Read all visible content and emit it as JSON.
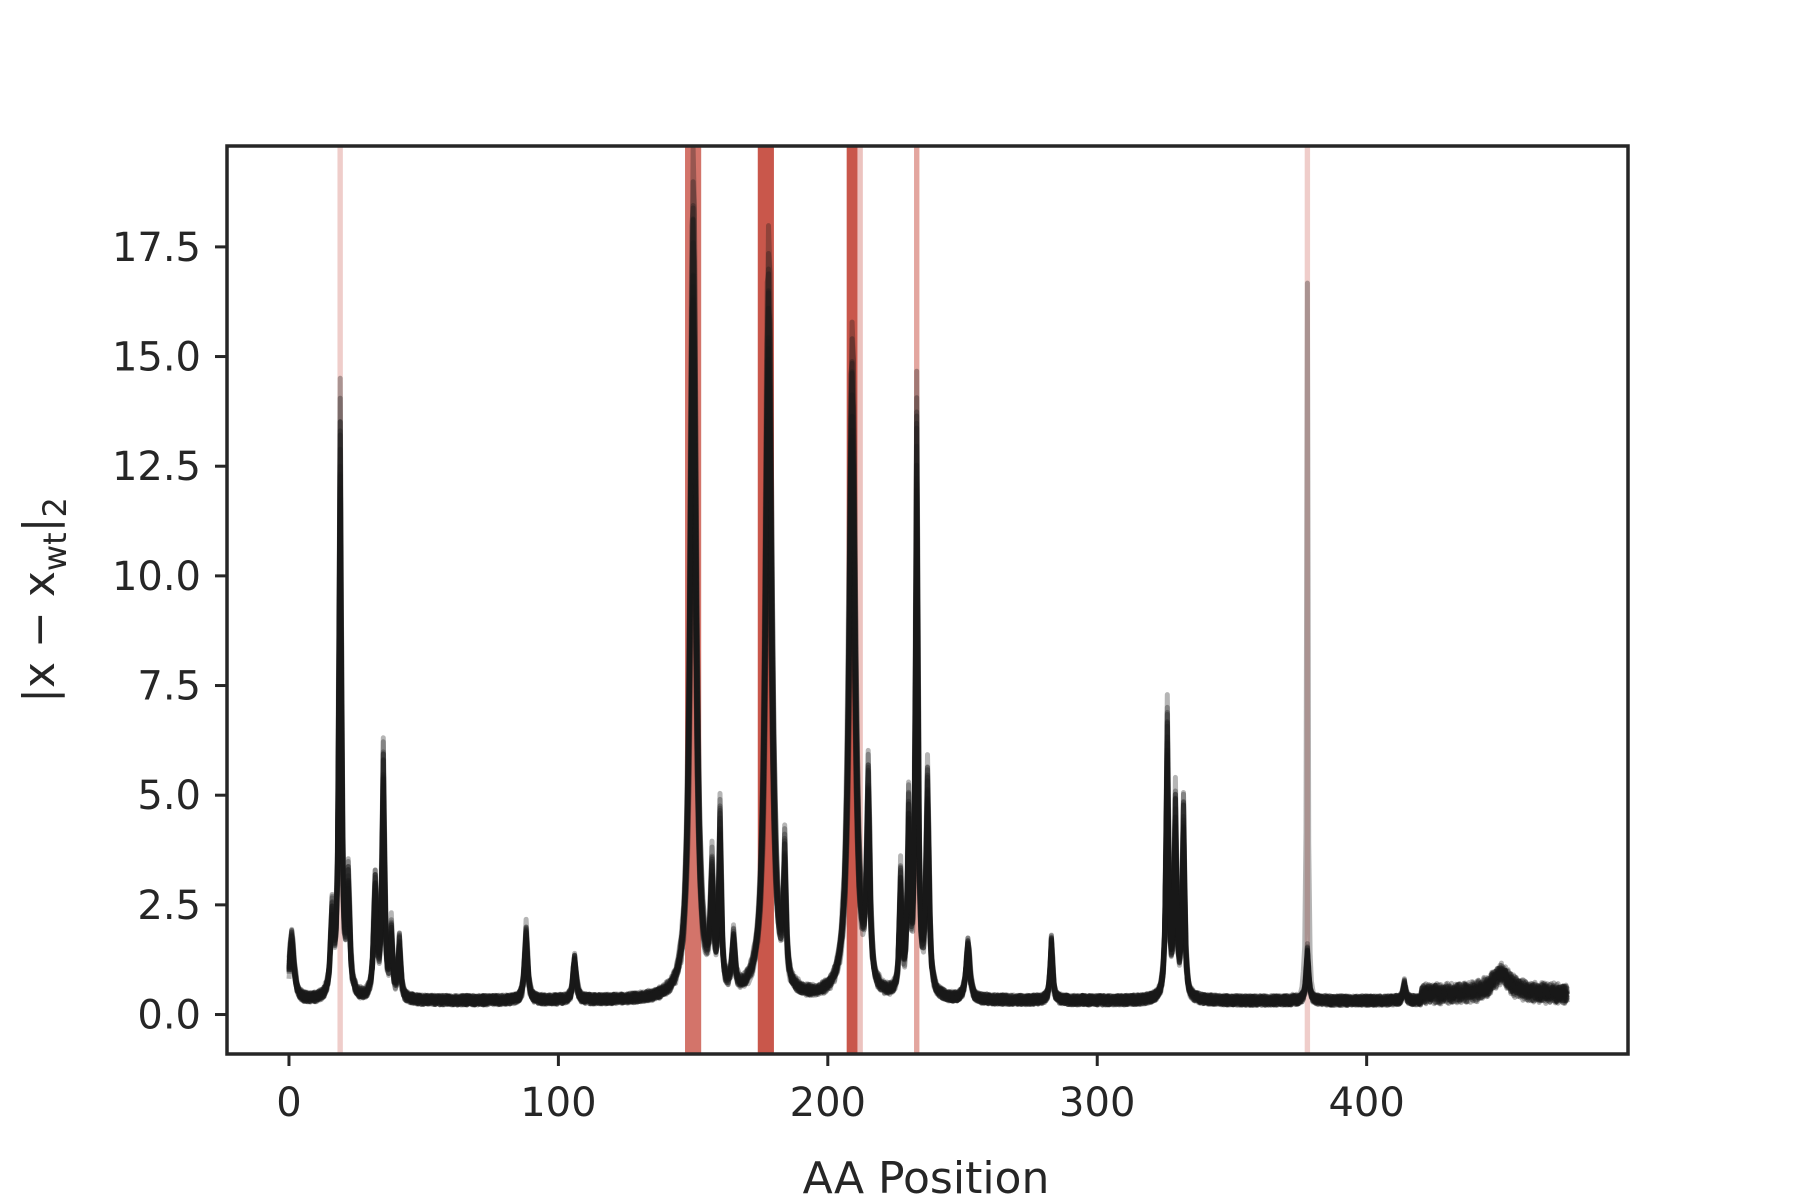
{
  "chart_data": {
    "type": "line",
    "title": "",
    "xlabel": "AA Position",
    "ylabel_parts": [
      "|x − x",
      "wt",
      "|",
      "2"
    ],
    "xlim": [
      -23,
      497
    ],
    "ylim": [
      -0.9,
      19.8
    ],
    "x_ticks": [
      0,
      100,
      200,
      300,
      400
    ],
    "x_tick_labels": [
      "0",
      "100",
      "200",
      "300",
      "400"
    ],
    "y_ticks": [
      0.0,
      2.5,
      5.0,
      7.5,
      10.0,
      12.5,
      15.0,
      17.5
    ],
    "y_tick_labels": [
      "0.0",
      "2.5",
      "5.0",
      "7.5",
      "10.0",
      "12.5",
      "15.0",
      "17.5"
    ],
    "grid": false,
    "legend": "none",
    "line_color": "#1a1a1a",
    "band_color": "#c0392b",
    "highlight_positions": [
      {
        "x": 19,
        "width": 2,
        "opacity": 0.25
      },
      {
        "x": 150,
        "width": 6,
        "opacity": 0.7
      },
      {
        "x": 177,
        "width": 6,
        "opacity": 0.85
      },
      {
        "x": 209,
        "width": 4,
        "opacity": 0.85
      },
      {
        "x": 212,
        "width": 2,
        "opacity": 0.3
      },
      {
        "x": 233,
        "width": 2,
        "opacity": 0.45
      },
      {
        "x": 378,
        "width": 2,
        "opacity": 0.25
      }
    ],
    "series_count": 20,
    "n_positions": 475,
    "baseline": 0.2,
    "peaks": [
      {
        "x": 1,
        "h": 1.5,
        "w": 1.5
      },
      {
        "x": 16,
        "h": 1.8,
        "w": 1.0
      },
      {
        "x": 19,
        "h": 12.8,
        "w": 0.8
      },
      {
        "x": 22,
        "h": 2.5,
        "w": 1.0
      },
      {
        "x": 32,
        "h": 2.6,
        "w": 1.0
      },
      {
        "x": 35,
        "h": 5.4,
        "w": 0.8
      },
      {
        "x": 38,
        "h": 1.5,
        "w": 0.8
      },
      {
        "x": 41,
        "h": 1.3,
        "w": 0.8
      },
      {
        "x": 88,
        "h": 1.6,
        "w": 1.0
      },
      {
        "x": 106,
        "h": 1.0,
        "w": 1.0
      },
      {
        "x": 150,
        "h": 17.8,
        "w": 1.8
      },
      {
        "x": 157,
        "h": 2.5,
        "w": 1.0
      },
      {
        "x": 160,
        "h": 3.8,
        "w": 0.8
      },
      {
        "x": 165,
        "h": 1.2,
        "w": 1.0
      },
      {
        "x": 178,
        "h": 16.2,
        "w": 2.0
      },
      {
        "x": 184,
        "h": 2.8,
        "w": 0.8
      },
      {
        "x": 209,
        "h": 14.2,
        "w": 2.0
      },
      {
        "x": 215,
        "h": 4.5,
        "w": 1.0
      },
      {
        "x": 227,
        "h": 2.6,
        "w": 0.8
      },
      {
        "x": 230,
        "h": 4.0,
        "w": 0.8
      },
      {
        "x": 233,
        "h": 12.8,
        "w": 0.8
      },
      {
        "x": 237,
        "h": 4.8,
        "w": 1.0
      },
      {
        "x": 252,
        "h": 1.3,
        "w": 1.2
      },
      {
        "x": 283,
        "h": 1.4,
        "w": 0.8
      },
      {
        "x": 326,
        "h": 6.2,
        "w": 0.8
      },
      {
        "x": 329,
        "h": 4.3,
        "w": 0.8
      },
      {
        "x": 332,
        "h": 4.2,
        "w": 0.8
      },
      {
        "x": 378,
        "h": 1.2,
        "w": 0.8
      },
      {
        "x": 414,
        "h": 0.4,
        "w": 0.8
      },
      {
        "x": 450,
        "h": 0.5,
        "w": 6.0
      }
    ],
    "outlier_peaks": [
      {
        "x": 378,
        "h": 15.2,
        "w": 0.5,
        "series": 3
      }
    ]
  }
}
